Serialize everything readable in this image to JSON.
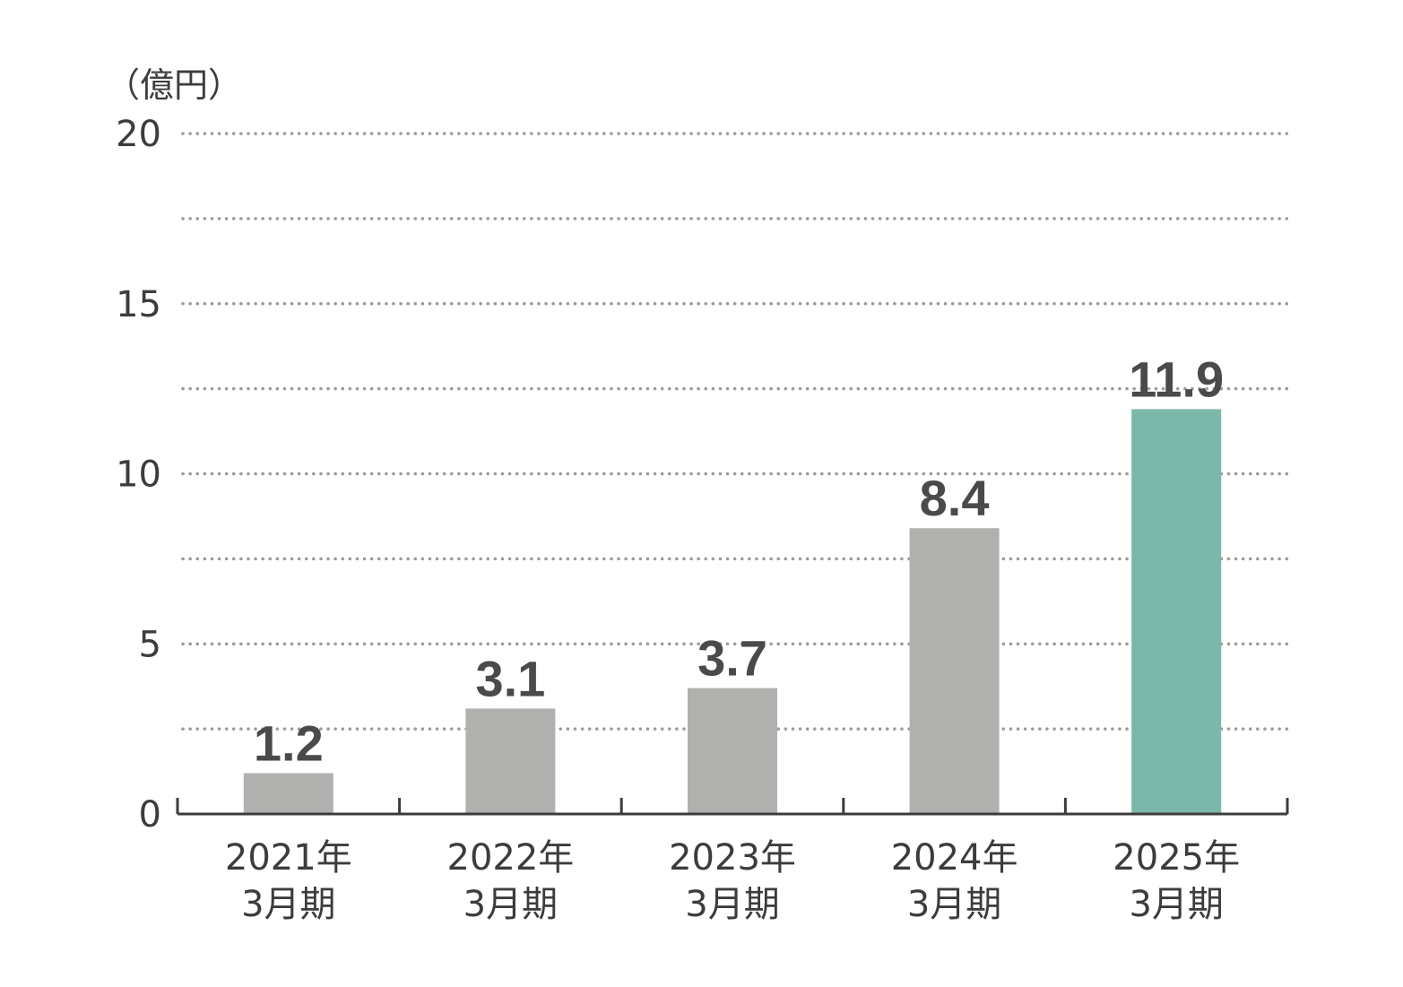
{
  "chart_data": {
    "type": "bar",
    "unit_label": "（億円）",
    "categories": [
      [
        "2021年",
        "3月期"
      ],
      [
        "2022年",
        "3月期"
      ],
      [
        "2023年",
        "3月期"
      ],
      [
        "2024年",
        "3月期"
      ],
      [
        "2025年",
        "3月期"
      ]
    ],
    "values": [
      1.2,
      3.1,
      3.7,
      8.4,
      11.9
    ],
    "value_labels": [
      "1.2",
      "3.1",
      "3.7",
      "8.4",
      "11.9"
    ],
    "bar_colors": [
      "#b0b0ae",
      "#b0b0ae",
      "#b0b0ae",
      "#b0b0ae",
      "#7bb8aa"
    ],
    "ylim": [
      0,
      20
    ],
    "yticks": [
      0,
      5,
      10,
      15,
      20
    ],
    "minor_gridlines": [
      2.5,
      7.5,
      12.5,
      17.5
    ],
    "grid": true,
    "grid_style": "dotted",
    "legend": "none"
  }
}
